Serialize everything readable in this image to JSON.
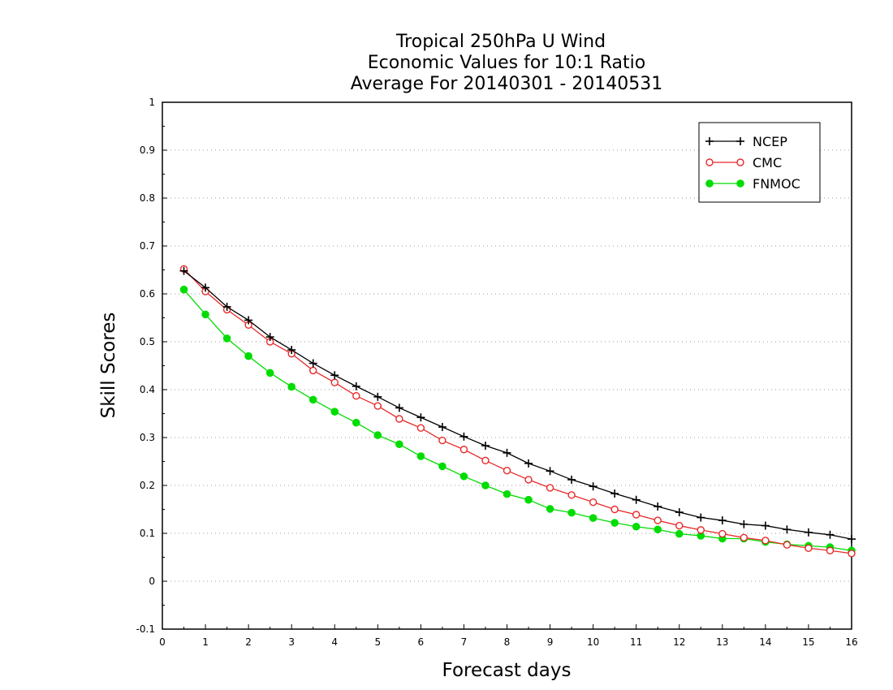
{
  "chart_data": {
    "type": "line",
    "title_lines": [
      "Tropical 250hPa U Wind",
      "Economic Values for 10:1 Ratio",
      "Average For 20140301 - 20140531"
    ],
    "xlabel": "Forecast days",
    "ylabel": "Skill Scores",
    "xlim": [
      0,
      16
    ],
    "ylim": [
      -0.1,
      1
    ],
    "x_ticks": [
      "0",
      "1",
      "2",
      "3",
      "4",
      "5",
      "6",
      "7",
      "8",
      "9",
      "10",
      "11",
      "12",
      "13",
      "14",
      "15",
      "16"
    ],
    "y_ticks": [
      "-0.1",
      "0",
      "0.1",
      "0.2",
      "0.3",
      "0.4",
      "0.5",
      "0.6",
      "0.7",
      "0.8",
      "0.9",
      "1"
    ],
    "grid": "horizontal dotted",
    "legend_position": "top-right",
    "x": [
      0.5,
      1,
      1.5,
      2,
      2.5,
      3,
      3.5,
      4,
      4.5,
      5,
      5.5,
      6,
      6.5,
      7,
      7.5,
      8,
      8.5,
      9,
      9.5,
      10,
      10.5,
      11,
      11.5,
      12,
      12.5,
      13,
      13.5,
      14,
      14.5,
      15,
      15.5,
      16
    ],
    "series": [
      {
        "name": "NCEP",
        "color": "#000000",
        "marker": "plus",
        "values": [
          0.648,
          0.613,
          0.573,
          0.545,
          0.51,
          0.483,
          0.455,
          0.43,
          0.407,
          0.385,
          0.362,
          0.342,
          0.322,
          0.302,
          0.283,
          0.268,
          0.246,
          0.23,
          0.212,
          0.198,
          0.183,
          0.17,
          0.156,
          0.144,
          0.133,
          0.127,
          0.119,
          0.116,
          0.108,
          0.102,
          0.097,
          0.088
        ]
      },
      {
        "name": "CMC",
        "color": "#e8292a",
        "marker": "open-circle",
        "values": [
          0.652,
          0.605,
          0.567,
          0.535,
          0.5,
          0.475,
          0.44,
          0.415,
          0.387,
          0.366,
          0.339,
          0.32,
          0.294,
          0.275,
          0.252,
          0.231,
          0.212,
          0.195,
          0.18,
          0.165,
          0.15,
          0.139,
          0.127,
          0.116,
          0.107,
          0.099,
          0.091,
          0.085,
          0.076,
          0.069,
          0.064,
          0.058
        ]
      },
      {
        "name": "FNMOC",
        "color": "#00dc00",
        "marker": "filled-circle",
        "values": [
          0.609,
          0.557,
          0.507,
          0.47,
          0.435,
          0.406,
          0.379,
          0.354,
          0.331,
          0.305,
          0.286,
          0.261,
          0.24,
          0.219,
          0.2,
          0.182,
          0.17,
          0.151,
          0.143,
          0.132,
          0.122,
          0.114,
          0.108,
          0.099,
          0.095,
          0.089,
          0.089,
          0.082,
          0.077,
          0.074,
          0.071,
          0.064
        ]
      }
    ]
  }
}
